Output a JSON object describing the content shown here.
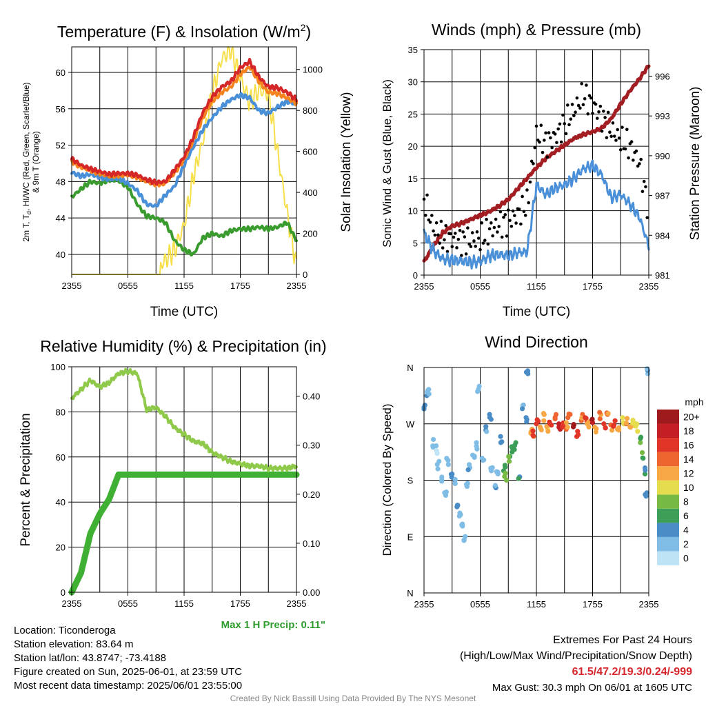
{
  "panels": {
    "temp": {
      "title": "Temperature (F) & Insolation (W/m",
      "title_sup": "2",
      "title_end": ")",
      "ylabel_left_1": "2m T, T",
      "ylabel_left_sub": "d",
      "ylabel_left_2": ", HI/WC (Red, Green, Scarlet/Blue)",
      "ylabel_left_3": "& 9m T (Orange)",
      "ylabel_right": "Solar Insolation (Yellow)",
      "xlabel": "Time (UTC)"
    },
    "wind": {
      "title": "Winds (mph) & Pressure (mb)",
      "ylabel_left": "Sonic Wind & Gust (Blue, Black)",
      "ylabel_right": "Station Pressure (Maroon)",
      "xlabel": "Time (UTC)"
    },
    "rh": {
      "title": "Relative Humidity (%) & Precipitation (in)",
      "ylabel_left": "Percent & Precipitation",
      "max_precip": "Max 1 H Precip: 0.11\""
    },
    "dir": {
      "title": "Wind Direction",
      "ylabel_left": "Direction (Colored By Speed)",
      "colorbar_title": "mph"
    }
  },
  "info": {
    "location": "Location: Ticonderoga",
    "elevation": "Station elevation: 83.64 m",
    "latlon": "Station lat/lon: 43.8747; -73.4188",
    "created": "Figure created on Sun, 2025-06-01, at 23:59 UTC",
    "recent": "Most recent data timestamp: 2025/06/01 23:55:00",
    "extremes_title": "Extremes For Past 24 Hours",
    "extremes_sub": "(High/Low/Max Wind/Precipitation/Snow Depth)",
    "extremes_values": "61.5/47.2/19.3/0.24/-999",
    "max_gust": "Max Gust: 30.3 mph On 06/01 at 1605 UTC",
    "credit": "Created By Nick Bassill Using Data Provided By The NYS Mesonet"
  },
  "chart_data": [
    {
      "type": "line",
      "title": "Temperature (F) & Insolation (W/m2)",
      "xlabel": "Time (UTC)",
      "x_ticks": [
        "2355",
        "0555",
        "1155",
        "1755",
        "2355"
      ],
      "y_left_ticks": [
        40,
        44,
        48,
        52,
        56,
        60
      ],
      "ylim_left": [
        37.8,
        62.8
      ],
      "y_right_ticks": [
        0,
        200,
        400,
        600,
        800,
        1000
      ],
      "ylim_right": [
        0,
        1110
      ],
      "hours": [
        0,
        1,
        2,
        3,
        4,
        5,
        6,
        7,
        8,
        9,
        10,
        11,
        12,
        13,
        14,
        15,
        16,
        17,
        18,
        19,
        20,
        21,
        22,
        23,
        24
      ],
      "series": [
        {
          "color": "#d62728",
          "axis": "left",
          "values": [
            50.5,
            49.8,
            49.4,
            49.1,
            48.8,
            48.9,
            48.9,
            48.7,
            48.2,
            47.9,
            48.0,
            49.3,
            50.7,
            52.9,
            55.6,
            57.3,
            58.4,
            59.0,
            60.5,
            61.2,
            59.5,
            58.4,
            58.3,
            57.8,
            57.0
          ]
        },
        {
          "color": "#f5841f",
          "axis": "left",
          "values": [
            50.2,
            49.6,
            49.2,
            48.9,
            48.6,
            48.7,
            48.7,
            48.5,
            48.0,
            47.7,
            47.8,
            49.0,
            50.4,
            52.5,
            55.0,
            56.8,
            57.8,
            58.4,
            59.8,
            60.6,
            59.0,
            57.8,
            57.7,
            57.2,
            56.6
          ]
        },
        {
          "color": "#4a90d9",
          "axis": "left",
          "values": [
            49.0,
            48.6,
            48.8,
            48.5,
            48.2,
            48.4,
            47.8,
            47.0,
            45.5,
            45.3,
            46.5,
            47.5,
            49.8,
            51.8,
            53.7,
            55.0,
            56.2,
            57.0,
            57.5,
            57.2,
            55.8,
            55.5,
            56.2,
            56.8,
            56.5
          ]
        },
        {
          "color": "#3a9c2e",
          "axis": "left",
          "values": [
            46.3,
            47.2,
            48.0,
            47.8,
            48.2,
            48.1,
            47.4,
            45.5,
            44.2,
            44.0,
            43.5,
            41.5,
            40.5,
            40.0,
            41.8,
            42.3,
            42.0,
            42.6,
            42.8,
            42.8,
            43.0,
            42.8,
            43.0,
            43.5,
            41.5
          ]
        },
        {
          "color": "#f7df49",
          "axis": "right",
          "values": [
            0,
            0,
            0,
            0,
            0,
            0,
            0,
            0,
            0,
            20,
            70,
            120,
            240,
            480,
            650,
            880,
            1050,
            1100,
            960,
            840,
            900,
            880,
            590,
            300,
            40
          ]
        }
      ]
    },
    {
      "type": "line",
      "title": "Winds (mph) & Pressure (mb)",
      "xlabel": "Time (UTC)",
      "x_ticks": [
        "2355",
        "0555",
        "1155",
        "1755",
        "2355"
      ],
      "y_left_ticks": [
        0,
        5,
        10,
        15,
        20,
        25,
        30,
        35
      ],
      "ylim_left": [
        0,
        35
      ],
      "y_right_ticks": [
        981,
        984,
        987,
        990,
        993,
        996
      ],
      "ylim_right": [
        981,
        998
      ],
      "hours": [
        0,
        1,
        2,
        3,
        4,
        5,
        6,
        7,
        8,
        9,
        10,
        11,
        12,
        13,
        14,
        15,
        16,
        17,
        18,
        19,
        20,
        21,
        22,
        23,
        24
      ],
      "series": [
        {
          "color": "#4a90d9",
          "axis": "left",
          "values": [
            6.5,
            3.8,
            2.5,
            2.3,
            2.2,
            2.0,
            2.1,
            3.0,
            3.2,
            3.0,
            3.5,
            3.6,
            14.0,
            12.5,
            13.5,
            14.0,
            15.0,
            16.5,
            17.0,
            15.5,
            12.0,
            12.5,
            11.0,
            9.0,
            4.5
          ]
        },
        {
          "color": "#000000",
          "axis": "left",
          "values": [
            11.0,
            6.5,
            5.0,
            4.8,
            4.5,
            4.5,
            4.8,
            6.0,
            7.0,
            7.5,
            8.5,
            10.0,
            21.0,
            19.5,
            20.5,
            22.5,
            24.5,
            27.0,
            25.5,
            23.5,
            21.5,
            20.0,
            19.0,
            16.5,
            9.0
          ]
        },
        {
          "color": "#a31e22",
          "axis": "right",
          "values": [
            982.0,
            983.2,
            984.2,
            984.7,
            984.9,
            985.2,
            985.5,
            985.8,
            986.2,
            986.7,
            987.5,
            988.3,
            989.1,
            989.8,
            990.3,
            990.8,
            991.3,
            991.6,
            991.8,
            992.1,
            992.8,
            993.9,
            994.9,
            995.8,
            996.8
          ]
        }
      ]
    },
    {
      "type": "line",
      "title": "Relative Humidity (%) & Precipitation (in)",
      "x_ticks": [
        "2355",
        "0555",
        "1155",
        "1755",
        "2355"
      ],
      "y_left_ticks": [
        0,
        20,
        40,
        60,
        80,
        100
      ],
      "ylim_left": [
        0,
        100
      ],
      "y_right_ticks": [
        0.0,
        0.1,
        0.2,
        0.3,
        0.4
      ],
      "ylim_right": [
        0,
        0.46
      ],
      "hours": [
        0,
        1,
        2,
        3,
        4,
        5,
        6,
        7,
        8,
        9,
        10,
        11,
        12,
        13,
        14,
        15,
        16,
        17,
        18,
        19,
        20,
        21,
        22,
        23,
        24
      ],
      "series": [
        {
          "color": "#8fc94a",
          "axis": "left",
          "values": [
            86,
            90,
            94,
            91,
            93,
            97,
            98,
            97,
            81,
            82,
            78,
            73,
            70,
            67,
            66,
            62,
            60,
            58,
            57,
            56,
            56,
            55,
            55,
            55,
            56
          ]
        },
        {
          "color": "#3fb034",
          "axis": "right",
          "values": [
            0.0,
            0.04,
            0.12,
            0.16,
            0.19,
            0.24,
            0.24,
            0.24,
            0.24,
            0.24,
            0.24,
            0.24,
            0.24,
            0.24,
            0.24,
            0.24,
            0.24,
            0.24,
            0.24,
            0.24,
            0.24,
            0.24,
            0.24,
            0.24,
            0.24
          ]
        }
      ]
    },
    {
      "type": "scatter",
      "title": "Wind Direction",
      "x_ticks": [
        "2355",
        "0555",
        "1155",
        "1755",
        "2355"
      ],
      "y_ticks": [
        "N",
        "E",
        "S",
        "W",
        "N"
      ],
      "ylim": [
        0,
        360
      ],
      "colorbar": {
        "title": "mph",
        "labels": [
          "0",
          "2",
          "4",
          "6",
          "8",
          "10",
          "12",
          "14",
          "16",
          "18",
          "20+"
        ],
        "colors": [
          "#bde3f5",
          "#7fbde6",
          "#4a8cc5",
          "#3d9e58",
          "#76b943",
          "#e6dd4e",
          "#f7a845",
          "#ef6530",
          "#e03527",
          "#c51f26",
          "#9e1a1d"
        ]
      },
      "points": [
        [
          0.1,
          300,
          3
        ],
        [
          0.3,
          315,
          3
        ],
        [
          0.5,
          325,
          2
        ],
        [
          1.0,
          245,
          2
        ],
        [
          1.3,
          235,
          1
        ],
        [
          1.6,
          210,
          2
        ],
        [
          1.9,
          185,
          2
        ],
        [
          2.2,
          160,
          1
        ],
        [
          2.6,
          205,
          2
        ],
        [
          3.0,
          190,
          3
        ],
        [
          3.3,
          180,
          3
        ],
        [
          3.6,
          140,
          3
        ],
        [
          3.9,
          125,
          2
        ],
        [
          4.1,
          110,
          1
        ],
        [
          4.4,
          90,
          1
        ],
        [
          4.6,
          170,
          2
        ],
        [
          4.9,
          200,
          2
        ],
        [
          5.2,
          220,
          2
        ],
        [
          5.6,
          240,
          2
        ],
        [
          5.9,
          330,
          1
        ],
        [
          6.2,
          215,
          2
        ],
        [
          6.6,
          260,
          3
        ],
        [
          7.0,
          285,
          3
        ],
        [
          7.3,
          200,
          2
        ],
        [
          7.6,
          170,
          3
        ],
        [
          7.9,
          190,
          2
        ],
        [
          8.2,
          240,
          3
        ],
        [
          8.5,
          195,
          6
        ],
        [
          8.8,
          180,
          7
        ],
        [
          9.1,
          210,
          7
        ],
        [
          9.4,
          225,
          6
        ],
        [
          9.8,
          240,
          5
        ],
        [
          10.2,
          185,
          4
        ],
        [
          10.6,
          300,
          4
        ],
        [
          10.9,
          280,
          3
        ],
        [
          11.1,
          350,
          4
        ],
        [
          11.4,
          255,
          12
        ],
        [
          11.7,
          250,
          13
        ],
        [
          12.0,
          270,
          15
        ],
        [
          12.4,
          265,
          11
        ],
        [
          12.8,
          275,
          12
        ],
        [
          13.2,
          262,
          10
        ],
        [
          13.6,
          268,
          15
        ],
        [
          14.0,
          278,
          13
        ],
        [
          14.4,
          270,
          18
        ],
        [
          14.8,
          265,
          16
        ],
        [
          15.2,
          272,
          12
        ],
        [
          15.6,
          285,
          14
        ],
        [
          16.0,
          268,
          19
        ],
        [
          16.4,
          258,
          16
        ],
        [
          16.8,
          275,
          13
        ],
        [
          17.2,
          280,
          15
        ],
        [
          17.6,
          265,
          11
        ],
        [
          18.0,
          272,
          17
        ],
        [
          18.4,
          262,
          12
        ],
        [
          18.8,
          278,
          14
        ],
        [
          19.2,
          270,
          16
        ],
        [
          19.6,
          285,
          13
        ],
        [
          20.0,
          268,
          11
        ],
        [
          20.4,
          275,
          15
        ],
        [
          20.8,
          260,
          12
        ],
        [
          21.2,
          280,
          10
        ],
        [
          21.6,
          270,
          13
        ],
        [
          22.0,
          265,
          11
        ],
        [
          22.4,
          272,
          10
        ],
        [
          22.8,
          258,
          9
        ],
        [
          23.1,
          240,
          7
        ],
        [
          23.4,
          215,
          6
        ],
        [
          23.6,
          190,
          5
        ],
        [
          23.8,
          160,
          3
        ],
        [
          23.9,
          350,
          1
        ]
      ]
    }
  ]
}
